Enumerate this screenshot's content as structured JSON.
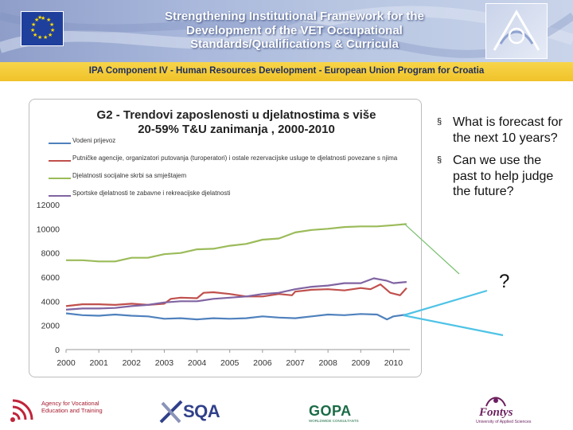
{
  "header": {
    "title_lines": [
      "Strengthening Institutional Framework for the",
      "Development of the VET Occupational",
      "Standards/Qualifications & Curricula"
    ],
    "program_bar": "IPA Component IV - Human Resources Development - European Union Program for Croatia"
  },
  "bullets": [
    "What is forecast for the next 10 years?",
    "Can we use the past to help judge the future?"
  ],
  "bullet_marker": "§",
  "question_mark": "?",
  "footer": {
    "ave_text": "Agency for Vocational Education and Training",
    "sqa_text": "SQA",
    "gopa_text": "GOPA",
    "gopa_sub": "WORLDWIDE CONSULTANTS",
    "fontys_text": "Fontys",
    "fontys_sub": "University of Applied Sciences"
  },
  "colors": {
    "series_blue": "#4f81bd",
    "series_red": "#c0504d",
    "series_green": "#9bbb59",
    "series_purple": "#8064a2",
    "callout_green": "#7ac070",
    "callout_cyan": "#4fc3e6",
    "banner_yellow": "#f0c22a"
  },
  "chart_data": {
    "type": "line",
    "title_lines": [
      "G2 - Trendovi zaposlenosti u djelatnostima s više",
      "20-59% T&U zanimanja , 2000-2010"
    ],
    "xlabel": "",
    "ylabel": "",
    "ylim": [
      0,
      12000
    ],
    "xlim": [
      2000,
      2010.5
    ],
    "y_ticks": [
      "0",
      "2000",
      "4000",
      "6000",
      "8000",
      "10000",
      "12000"
    ],
    "x_ticks": [
      "2000",
      "2001",
      "2002",
      "2003",
      "2004",
      "2005",
      "2006",
      "2007",
      "2008",
      "2009",
      "2010"
    ],
    "grid": false,
    "series": [
      {
        "name": "Vodeni prijevoz",
        "color": "#4f81bd",
        "x": [
          2000,
          2000.5,
          2001,
          2001.5,
          2002,
          2002.5,
          2003,
          2003.5,
          2004,
          2004.5,
          2005,
          2005.5,
          2006,
          2006.5,
          2007,
          2007.5,
          2008,
          2008.5,
          2009,
          2009.5,
          2009.8,
          2010,
          2010.4
        ],
        "y": [
          3000,
          2850,
          2800,
          2900,
          2800,
          2750,
          2550,
          2600,
          2500,
          2600,
          2550,
          2600,
          2750,
          2650,
          2600,
          2750,
          2900,
          2850,
          2950,
          2900,
          2500,
          2750,
          2900
        ]
      },
      {
        "name": "Putničke agencije, organizatori putovanja (turoperatori) i ostale rezervacijske usluge te djelatnosti povezane s njima",
        "color": "#c0504d",
        "x": [
          2000,
          2000.5,
          2001,
          2001.5,
          2002,
          2002.5,
          2003,
          2003.2,
          2003.5,
          2004,
          2004.2,
          2004.5,
          2005,
          2005.5,
          2006,
          2006.5,
          2006.9,
          2007,
          2007.5,
          2008,
          2008.5,
          2009,
          2009.3,
          2009.6,
          2009.9,
          2010.2,
          2010.4
        ],
        "y": [
          3600,
          3750,
          3750,
          3700,
          3800,
          3700,
          3800,
          4200,
          4300,
          4250,
          4700,
          4750,
          4600,
          4400,
          4400,
          4600,
          4500,
          4800,
          4950,
          5000,
          4900,
          5100,
          5000,
          5400,
          4700,
          4500,
          5100
        ]
      },
      {
        "name": "Djelatnosti socijalne skrbi sa smještajem",
        "color": "#9bbb59",
        "x": [
          2000,
          2000.5,
          2001,
          2001.5,
          2002,
          2002.5,
          2003,
          2003.5,
          2004,
          2004.5,
          2005,
          2005.5,
          2006,
          2006.5,
          2007,
          2007.5,
          2008,
          2008.5,
          2009,
          2009.5,
          2010,
          2010.4
        ],
        "y": [
          7400,
          7400,
          7300,
          7300,
          7600,
          7600,
          7900,
          8000,
          8300,
          8350,
          8600,
          8750,
          9100,
          9200,
          9700,
          9900,
          10000,
          10150,
          10200,
          10200,
          10300,
          10400
        ]
      },
      {
        "name": "Sportske djelatnosti te zabavne i rekreacijske djelatnosti",
        "color": "#8064a2",
        "x": [
          2000,
          2000.5,
          2001,
          2001.5,
          2002,
          2002.5,
          2003,
          2003.5,
          2004,
          2004.5,
          2005,
          2005.5,
          2006,
          2006.5,
          2007,
          2007.5,
          2008,
          2008.5,
          2009,
          2009.4,
          2009.8,
          2010,
          2010.4
        ],
        "y": [
          3300,
          3400,
          3400,
          3450,
          3600,
          3700,
          3900,
          4000,
          4000,
          4200,
          4300,
          4400,
          4600,
          4700,
          5000,
          5200,
          5300,
          5500,
          5500,
          5900,
          5700,
          5500,
          5600
        ]
      }
    ]
  }
}
